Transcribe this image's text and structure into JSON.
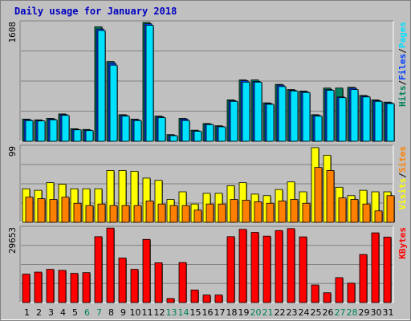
{
  "title": "Daily usage for January 2018",
  "colors": {
    "background": "#C0C0C0",
    "border": "#808080",
    "title": "#0000C0",
    "hits": "#00805C",
    "files": "#0040FF",
    "pages": "#00E0FF",
    "visits": "#FFFF00",
    "sites": "#FF8000",
    "kbytes": "#FF0000",
    "weekday_label": "#000000",
    "weekend_label": "#00805C",
    "grid": "#808080"
  },
  "chart_data": [
    {
      "type": "bar",
      "panel": "top",
      "max_label": "1608",
      "ylim": [
        0,
        1608
      ],
      "legend_right": [
        "Pages",
        "/",
        "Files",
        "/",
        "Hits"
      ],
      "categories": [
        "1",
        "2",
        "3",
        "4",
        "5",
        "6",
        "7",
        "8",
        "9",
        "10",
        "11",
        "12",
        "13",
        "14",
        "15",
        "16",
        "17",
        "18",
        "19",
        "20",
        "21",
        "22",
        "23",
        "24",
        "25",
        "26",
        "27",
        "28",
        "29",
        "30",
        "31"
      ],
      "series": [
        {
          "name": "Hits",
          "values": [
            300,
            290,
            310,
            370,
            170,
            160,
            1550,
            1080,
            360,
            300,
            1610,
            340,
            90,
            310,
            150,
            240,
            210,
            560,
            830,
            830,
            520,
            770,
            700,
            680,
            360,
            720,
            720,
            730,
            620,
            560,
            530
          ]
        },
        {
          "name": "Files",
          "values": [
            290,
            280,
            300,
            360,
            160,
            150,
            1520,
            1060,
            350,
            290,
            1590,
            330,
            80,
            300,
            140,
            230,
            200,
            550,
            820,
            810,
            510,
            760,
            690,
            670,
            350,
            700,
            600,
            720,
            610,
            550,
            520
          ]
        },
        {
          "name": "Pages",
          "values": [
            280,
            275,
            290,
            350,
            155,
            145,
            1500,
            1030,
            340,
            280,
            1570,
            320,
            75,
            280,
            135,
            225,
            195,
            540,
            800,
            800,
            500,
            740,
            680,
            660,
            340,
            690,
            590,
            700,
            600,
            540,
            510
          ]
        }
      ]
    },
    {
      "type": "bar",
      "panel": "middle",
      "max_label": "99",
      "ylim": [
        0,
        99
      ],
      "legend_right": [
        "Sites",
        "/",
        "Visits"
      ],
      "categories": [
        "1",
        "2",
        "3",
        "4",
        "5",
        "6",
        "7",
        "8",
        "9",
        "10",
        "11",
        "12",
        "13",
        "14",
        "15",
        "16",
        "17",
        "18",
        "19",
        "20",
        "21",
        "22",
        "23",
        "24",
        "25",
        "26",
        "27",
        "28",
        "29",
        "30",
        "31"
      ],
      "series": [
        {
          "name": "Visits",
          "values": [
            44,
            42,
            52,
            50,
            44,
            44,
            44,
            68,
            68,
            67,
            58,
            55,
            30,
            40,
            24,
            38,
            38,
            48,
            52,
            37,
            35,
            43,
            53,
            40,
            98,
            88,
            46,
            35,
            42,
            40,
            40
          ]
        },
        {
          "name": "Sites",
          "values": [
            33,
            31,
            30,
            33,
            25,
            22,
            24,
            22,
            22,
            22,
            28,
            24,
            22,
            22,
            16,
            24,
            24,
            30,
            29,
            27,
            25,
            28,
            30,
            25,
            72,
            68,
            32,
            30,
            24,
            15,
            35
          ]
        }
      ]
    },
    {
      "type": "bar",
      "panel": "bottom",
      "max_label": "29653",
      "ylim": [
        0,
        29653
      ],
      "legend_right": [
        "KBytes"
      ],
      "categories": [
        "1",
        "2",
        "3",
        "4",
        "5",
        "6",
        "7",
        "8",
        "9",
        "10",
        "11",
        "12",
        "13",
        "14",
        "15",
        "16",
        "17",
        "18",
        "19",
        "20",
        "21",
        "22",
        "23",
        "24",
        "25",
        "26",
        "27",
        "28",
        "29",
        "30",
        "31"
      ],
      "series": [
        {
          "name": "KBytes",
          "values": [
            11300,
            12100,
            13200,
            12800,
            11600,
            11900,
            26200,
            29600,
            17700,
            13200,
            25100,
            15800,
            1600,
            15900,
            5000,
            3000,
            3000,
            26200,
            29100,
            27900,
            26400,
            28600,
            29400,
            26100,
            7000,
            3900,
            9900,
            7700,
            19100,
            27700,
            26000
          ]
        }
      ]
    }
  ],
  "x_labels": [
    "1",
    "2",
    "3",
    "4",
    "5",
    "6",
    "7",
    "8",
    "9",
    "10",
    "11",
    "12",
    "13",
    "14",
    "15",
    "16",
    "17",
    "18",
    "19",
    "20",
    "21",
    "22",
    "23",
    "24",
    "25",
    "26",
    "27",
    "28",
    "29",
    "30",
    "31"
  ],
  "weekend_days": [
    6,
    7,
    13,
    14,
    20,
    21,
    27,
    28
  ]
}
